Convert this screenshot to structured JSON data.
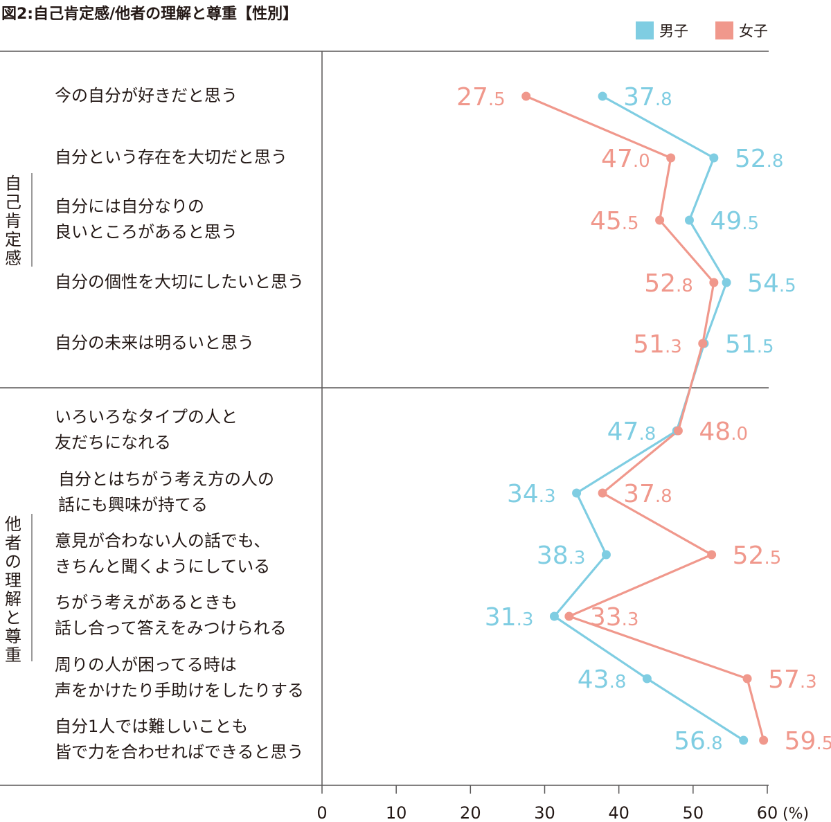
{
  "chart_data": {
    "type": "line",
    "orientation": "horizontal",
    "title": "図2:自己肯定感/他者の理解と尊重【性別】",
    "xlabel": "(%)",
    "xlim": [
      0,
      60
    ],
    "x_ticks": [
      "0",
      "10",
      "20",
      "30",
      "40",
      "50",
      "60"
    ],
    "groups": [
      {
        "label": "自己肯定感",
        "items": [
          0,
          1,
          2,
          3,
          4
        ]
      },
      {
        "label": "他者の理解と尊重",
        "items": [
          5,
          6,
          7,
          8,
          9,
          10
        ]
      }
    ],
    "categories": [
      "今の自分が好きだと思う",
      "自分という存在を大切だと思う",
      "自分には自分なりの\n良いところがあると思う",
      "自分の個性を大切にしたいと思う",
      "自分の未来は明るいと思う",
      "いろいろなタイプの人と\n友だちになれる",
      "自分とはちがう考え方の人の\n話にも興味が持てる",
      "意見が合わない人の話でも、\nきちんと聞くようにしている",
      "ちがう考えがあるときも\n話し合って答えをみつけられる",
      "周りの人が困ってる時は\n声をかけたり手助けをしたりする",
      "自分1人では難しいことも\n皆で力を合わせればできると思う"
    ],
    "series": [
      {
        "name": "男子",
        "color": "#7fcde2",
        "values": [
          37.8,
          52.8,
          49.5,
          54.5,
          51.5,
          47.8,
          34.3,
          38.3,
          31.3,
          43.8,
          56.8
        ],
        "labels": [
          "37.8",
          "52.8",
          "49.5",
          "54.5",
          "51.5",
          "47.8",
          "34.3",
          "38.3",
          "31.3",
          "43.8",
          "56.8"
        ]
      },
      {
        "name": "女子",
        "color": "#f0988c",
        "values": [
          27.5,
          47.0,
          45.5,
          52.8,
          51.3,
          48.0,
          37.8,
          52.5,
          33.3,
          57.3,
          59.5
        ],
        "labels": [
          "27.5",
          "47.0",
          "45.5",
          "52.8",
          "51.3",
          "48.0",
          "37.8",
          "52.5",
          "33.3",
          "57.3",
          "59.5"
        ]
      }
    ],
    "legend_position": "top-right",
    "grid": false
  }
}
